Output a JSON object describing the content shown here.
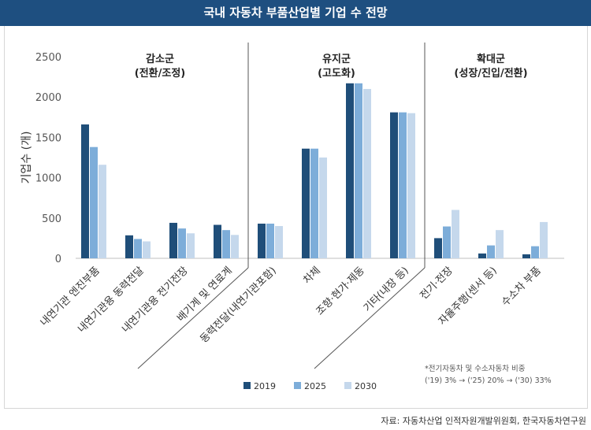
{
  "header": {
    "title": "국내 자동차 부품산업별 기업 수 전망"
  },
  "source": "자료: 자동차산업 인적자원개발위원회, 한국자동차연구원",
  "chart_data": {
    "type": "bar",
    "title": "국내 자동차 부품산업별 기업 수 전망",
    "ylabel": "기업수 (개)",
    "xlabel": "",
    "ylim": [
      0,
      2500
    ],
    "yticks": [
      0,
      500,
      1000,
      1500,
      2000,
      2500
    ],
    "grid": false,
    "legend_position": "bottom",
    "categories": [
      "내연기관 엔진부품",
      "내연기관용 동력전달",
      "내연기관용 전기전장",
      "배기계 및 연료계",
      "동력전달(내연기관포함)",
      "차체",
      "조향·현가·제동",
      "기타(내장 등)",
      "전기·전장",
      "자율주행(센서 등)",
      "수소차 부품"
    ],
    "series": [
      {
        "name": "2019",
        "color": "#1f4e79",
        "values": [
          1660,
          285,
          440,
          415,
          430,
          1360,
          2170,
          1810,
          250,
          60,
          50
        ]
      },
      {
        "name": "2025",
        "color": "#7dadd9",
        "values": [
          1380,
          240,
          370,
          350,
          430,
          1360,
          2170,
          1810,
          395,
          160,
          150
        ]
      },
      {
        "name": "2030",
        "color": "#c5d8ec",
        "values": [
          1160,
          210,
          310,
          290,
          400,
          1250,
          2100,
          1800,
          600,
          350,
          450
        ]
      }
    ],
    "groups": [
      {
        "line1": "감소군",
        "line2": "(전환/조정)",
        "first": 0,
        "last": 3
      },
      {
        "line1": "유지군",
        "line2": "(고도화)",
        "first": 4,
        "last": 7
      },
      {
        "line1": "확대군",
        "line2": "(성장/진입/전환)",
        "first": 8,
        "last": 10
      }
    ],
    "annotations": [
      "*전기자동차 및 수소자동차 비중",
      "('19) 3% → ('25) 20% → ('30) 33%"
    ]
  }
}
